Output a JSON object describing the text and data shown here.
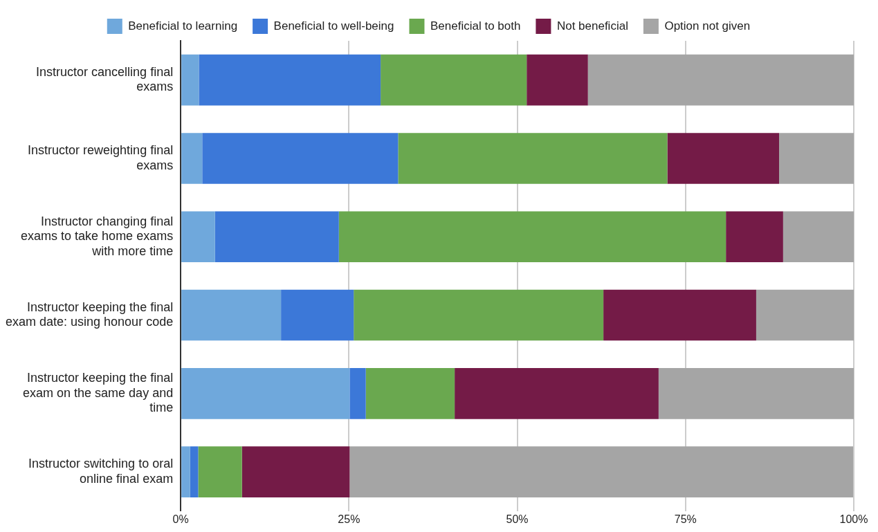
{
  "chart_data": {
    "type": "bar",
    "orientation": "horizontal",
    "stacked": true,
    "legend": "top",
    "grid": "x",
    "categories": [
      "Instructor cancelling final exams",
      "Instructor reweighting final exams",
      "Instructor changing final exams to take home exams with more time",
      "Instructor keeping the final exam date: using honour code",
      "Instructor keeping the final exam on the same day and time",
      "Instructor switching to oral online final exam"
    ],
    "series": [
      {
        "name": "Beneficial to learning",
        "color": "#6fa8dc",
        "values": [
          2.7,
          3.2,
          5.1,
          14.9,
          25.1,
          1.4
        ]
      },
      {
        "name": "Beneficial to well-being",
        "color": "#3c78d8",
        "values": [
          27.0,
          29.1,
          18.4,
          10.8,
          2.4,
          1.2
        ]
      },
      {
        "name": "Beneficial to both",
        "color": "#6aa84f",
        "values": [
          21.7,
          40.0,
          57.5,
          37.1,
          13.2,
          6.5
        ]
      },
      {
        "name": "Not beneficial",
        "color": "#741b47",
        "values": [
          9.1,
          16.6,
          8.5,
          22.7,
          30.3,
          16.0
        ]
      },
      {
        "name": "Option not given",
        "color": "#a5a5a5",
        "values": [
          39.5,
          11.1,
          10.5,
          14.6,
          29.1,
          74.8
        ]
      }
    ],
    "xlim": [
      0,
      100
    ],
    "xticks": [
      {
        "value": 0,
        "label": "0%"
      },
      {
        "value": 25,
        "label": "25%"
      },
      {
        "value": 50,
        "label": "50%"
      },
      {
        "value": 75,
        "label": "75%"
      },
      {
        "value": 100,
        "label": "100%"
      }
    ]
  }
}
